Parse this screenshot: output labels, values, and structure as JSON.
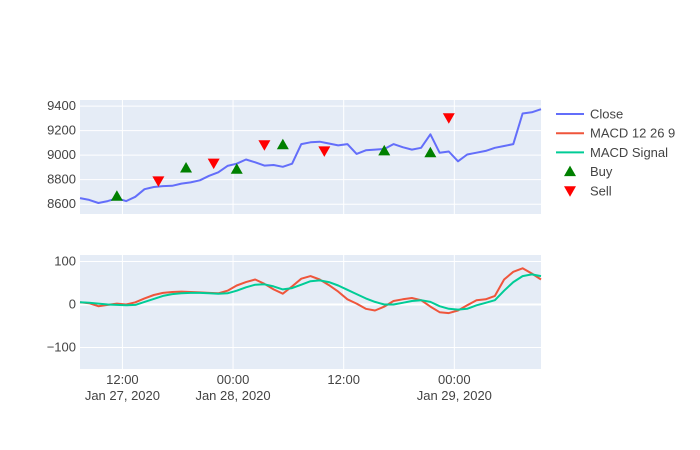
{
  "chart_data": [
    {
      "type": "line",
      "panel": "price",
      "ylim": [
        8520,
        9450
      ],
      "yticks": [
        8600,
        8800,
        9000,
        9200,
        9400
      ],
      "ytick_labels": [
        "8600",
        "8800",
        "9000",
        "9200",
        "9400"
      ],
      "x_hours": [
        0,
        1,
        2,
        3,
        4,
        5,
        6,
        7,
        8,
        9,
        10,
        11,
        12,
        13,
        14,
        15,
        16,
        17,
        18,
        19,
        20,
        21,
        22,
        23,
        24,
        25,
        26,
        27,
        28,
        29,
        30,
        31,
        32,
        33,
        34,
        35,
        36,
        37,
        38,
        39,
        40,
        41,
        42,
        43,
        44,
        45,
        46,
        47,
        48,
        49,
        50
      ],
      "series": [
        {
          "name": "Close",
          "color": "#636efa",
          "values": [
            8650,
            8635,
            8610,
            8625,
            8648,
            8625,
            8660,
            8722,
            8740,
            8748,
            8750,
            8768,
            8778,
            8795,
            8832,
            8860,
            8912,
            8930,
            8965,
            8942,
            8915,
            8920,
            8905,
            8930,
            9090,
            9105,
            9110,
            9095,
            9080,
            9090,
            9010,
            9040,
            9045,
            9050,
            9090,
            9065,
            9045,
            9060,
            9170,
            9020,
            9030,
            8950,
            9005,
            9020,
            9035,
            9060,
            9075,
            9090,
            9340,
            9350,
            9375
          ]
        }
      ],
      "markers": [
        {
          "name": "Buy",
          "symbol": "triangle-up",
          "color": "#008000",
          "points": [
            [
              4,
              8665
            ],
            [
              11.5,
              8895
            ],
            [
              17,
              8885
            ],
            [
              22,
              9085
            ],
            [
              33,
              9035
            ],
            [
              38,
              9020
            ]
          ]
        },
        {
          "name": "Sell",
          "symbol": "triangle-down",
          "color": "#ff0000",
          "points": [
            [
              8.5,
              8790
            ],
            [
              14.5,
              8935
            ],
            [
              20,
              9085
            ],
            [
              26.5,
              9035
            ],
            [
              40,
              9305
            ]
          ]
        }
      ]
    },
    {
      "type": "line",
      "panel": "macd",
      "ylim": [
        -150,
        115
      ],
      "yticks": [
        100,
        0,
        -100
      ],
      "ytick_labels": [
        "100",
        "0",
        "−100"
      ],
      "x_hours": [
        0,
        1,
        2,
        3,
        4,
        5,
        6,
        7,
        8,
        9,
        10,
        11,
        12,
        13,
        14,
        15,
        16,
        17,
        18,
        19,
        20,
        21,
        22,
        23,
        24,
        25,
        26,
        27,
        28,
        29,
        30,
        31,
        32,
        33,
        34,
        35,
        36,
        37,
        38,
        39,
        40,
        41,
        42,
        43,
        44,
        45,
        46,
        47,
        48,
        49,
        50
      ],
      "series": [
        {
          "name": "MACD 12 26 9",
          "color": "#ef553b",
          "values": [
            5,
            3,
            -4,
            -1,
            2,
            0,
            5,
            14,
            22,
            27,
            29,
            30,
            29,
            28,
            27,
            26,
            32,
            44,
            52,
            58,
            48,
            35,
            25,
            42,
            60,
            66,
            58,
            45,
            30,
            12,
            2,
            -10,
            -14,
            -5,
            8,
            12,
            15,
            10,
            -5,
            -18,
            -20,
            -14,
            -2,
            10,
            12,
            20,
            58,
            76,
            84,
            72,
            58
          ]
        },
        {
          "name": "MACD Signal",
          "color": "#00cc96",
          "values": [
            5,
            4,
            2,
            0,
            -1,
            -2,
            -1,
            6,
            13,
            20,
            24,
            26,
            27,
            27,
            26,
            25,
            26,
            32,
            40,
            46,
            47,
            42,
            35,
            38,
            46,
            54,
            56,
            52,
            44,
            34,
            24,
            14,
            6,
            0,
            0,
            4,
            8,
            10,
            6,
            -4,
            -10,
            -12,
            -10,
            -2,
            4,
            10,
            32,
            52,
            66,
            70,
            66
          ]
        }
      ]
    },
    {
      "type": "axis",
      "xtick_labels": [
        {
          "hour": 4.6,
          "time": "12:00",
          "date": "Jan 27, 2020"
        },
        {
          "hour": 16.6,
          "time": "00:00",
          "date": "Jan 28, 2020"
        },
        {
          "hour": 28.6,
          "time": "12:00",
          "date": ""
        },
        {
          "hour": 40.6,
          "time": "00:00",
          "date": "Jan 29, 2020"
        }
      ],
      "legend": {
        "position": "right",
        "items": [
          {
            "label": "Close",
            "kind": "line",
            "color": "#636efa"
          },
          {
            "label": "MACD 12 26 9",
            "kind": "line",
            "color": "#ef553b"
          },
          {
            "label": "MACD Signal",
            "kind": "line",
            "color": "#00cc96"
          },
          {
            "label": "Buy",
            "kind": "triangle-up",
            "color": "#008000"
          },
          {
            "label": "Sell",
            "kind": "triangle-down",
            "color": "#ff0000"
          }
        ]
      }
    }
  ]
}
